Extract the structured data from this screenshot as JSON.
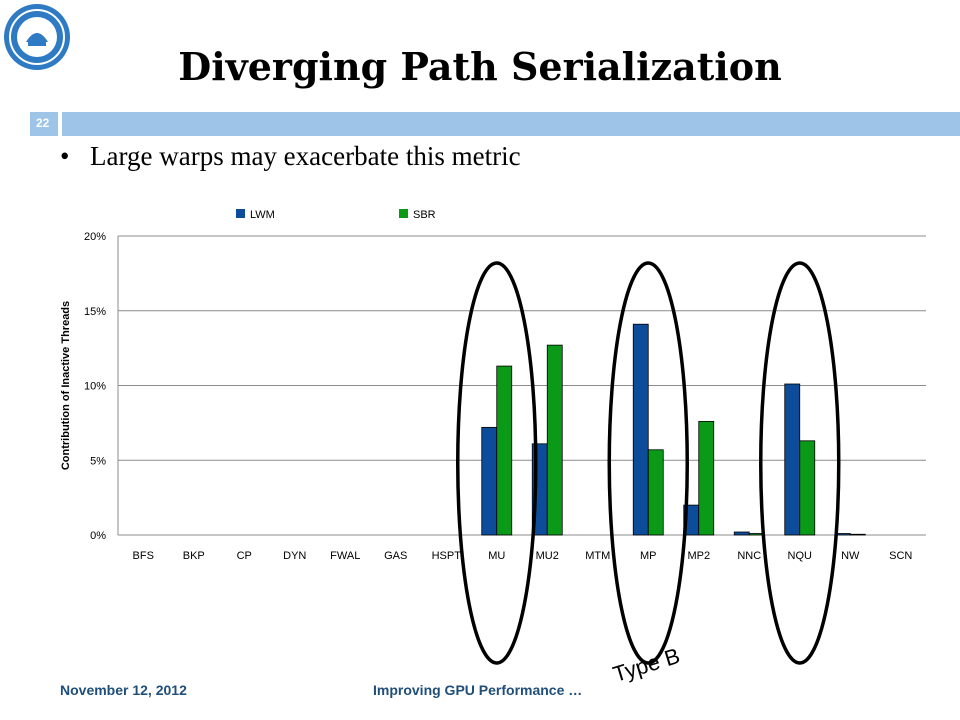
{
  "slide": {
    "title": "Diverging Path Serialization",
    "slide_number": "22",
    "bullet": "Large warps may exacerbate this metric",
    "footer_date": "November 12, 2012",
    "footer_title": "Improving GPU Performance …",
    "annotation": "Type B",
    "logo_icon": "university-seal-icon"
  },
  "chart_data": {
    "type": "bar",
    "categories": [
      "BFS",
      "BKP",
      "CP",
      "DYN",
      "FWAL",
      "GAS",
      "HSPT",
      "MU",
      "MU2",
      "MTM",
      "MP",
      "MP2",
      "NNC",
      "NQU",
      "NW",
      "SCN"
    ],
    "series": [
      {
        "name": "LWM",
        "color": "#0d4c9a",
        "values": [
          0,
          0,
          0,
          0,
          0,
          0,
          0,
          7.2,
          6.1,
          0,
          14.1,
          2.0,
          0.2,
          10.1,
          0.1,
          0
        ]
      },
      {
        "name": "SBR",
        "color": "#0a9a17",
        "values": [
          0,
          0,
          0,
          0,
          0,
          0,
          0,
          11.3,
          12.7,
          0,
          5.7,
          7.6,
          0.1,
          6.3,
          0.05,
          0
        ]
      }
    ],
    "ylabel": "Contribution of Inactive Threads",
    "ylim": [
      0,
      20
    ],
    "yticks": [
      "0%",
      "5%",
      "10%",
      "15%",
      "20%"
    ],
    "grid": true,
    "legend": "top",
    "highlighted_categories": [
      "MU",
      "MP",
      "NQU"
    ]
  }
}
